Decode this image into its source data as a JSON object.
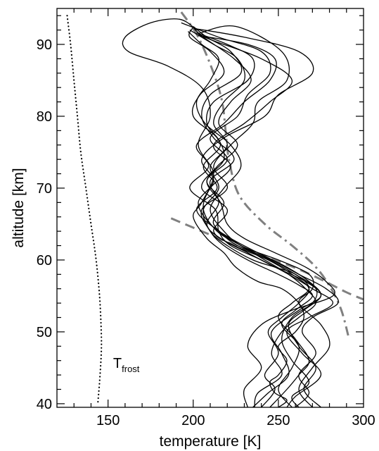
{
  "chart_data": {
    "type": "line",
    "title": "",
    "xlabel": "temperature [K]",
    "ylabel": "altitude [km]",
    "xlim": [
      120,
      300
    ],
    "ylim": [
      39.5,
      95
    ],
    "xticks": [
      150,
      200,
      250,
      300
    ],
    "yticks": [
      40,
      50,
      60,
      70,
      80,
      90
    ],
    "grid": false,
    "legend": "none",
    "colors": {
      "profiles": "#000000",
      "reference": "#808080",
      "frost": "#000000"
    },
    "annotation": {
      "text": "T",
      "subscript": "frost",
      "x": 153,
      "y": 45
    },
    "series": [
      {
        "style": "dotted",
        "color": "#000000",
        "x": [
          126,
          128,
          130,
          132,
          134,
          137,
          140,
          143,
          145,
          146,
          146,
          145,
          144
        ],
        "y": [
          94,
          90,
          85,
          80,
          75,
          70,
          65,
          60,
          55,
          50,
          47,
          43,
          40
        ]
      },
      {
        "style": "dashed",
        "color": "#808080",
        "x": [
          187,
          200,
          215,
          230,
          245,
          260,
          275,
          290,
          300
        ],
        "y": [
          65.8,
          64.5,
          63,
          61.5,
          60.2,
          58.9,
          57.3,
          55.5,
          54.5
        ]
      },
      {
        "style": "dashdot",
        "color": "#808080",
        "x": [
          193,
          203,
          212,
          217,
          219,
          221,
          227,
          242,
          258,
          272,
          281,
          287,
          291
        ],
        "y": [
          94.5,
          91,
          86,
          82,
          78,
          74,
          69,
          65,
          62,
          59,
          56,
          53,
          49.5
        ]
      },
      {
        "style": "solid",
        "color": "#000000",
        "x": [
          202,
          192,
          175,
          160,
          162,
          185,
          205,
          210,
          203,
          212,
          205,
          200,
          208,
          218,
          225,
          238,
          252,
          262,
          265,
          260,
          250,
          255,
          250,
          245,
          248,
          255,
          250
        ],
        "y": [
          92,
          93.5,
          93,
          91,
          89,
          87,
          84,
          80,
          76,
          72,
          68,
          66,
          63,
          61,
          59,
          57,
          56,
          54,
          52,
          50,
          48,
          46,
          44,
          43,
          41.5,
          40.5,
          39.5
        ]
      },
      {
        "style": "solid",
        "color": "#000000",
        "x": [
          198,
          212,
          226,
          230,
          218,
          212,
          220,
          210,
          215,
          206,
          210,
          220,
          235,
          248,
          260,
          268,
          258,
          250,
          260,
          268,
          262,
          255,
          245
        ],
        "y": [
          92,
          90,
          88,
          85,
          82,
          79,
          76,
          73,
          70,
          67,
          64,
          62,
          60,
          59,
          58,
          56,
          54,
          52,
          49,
          46,
          44,
          42,
          39.5
        ]
      },
      {
        "style": "solid",
        "color": "#000000",
        "x": [
          193,
          215,
          240,
          245,
          232,
          226,
          210,
          220,
          208,
          218,
          212,
          228,
          250,
          268,
          270,
          262,
          275,
          280,
          270,
          262,
          270
        ],
        "y": [
          93,
          91,
          89,
          86,
          83,
          80,
          77,
          74,
          71,
          68,
          65,
          62,
          60,
          58,
          56,
          54,
          51,
          48,
          45,
          42,
          39.5
        ]
      },
      {
        "style": "solid",
        "color": "#000000",
        "x": [
          203,
          225,
          252,
          255,
          238,
          235,
          222,
          212,
          220,
          205,
          210,
          218,
          232,
          250,
          262,
          270,
          260,
          252,
          262,
          258,
          250,
          258
        ],
        "y": [
          91.5,
          92.5,
          89,
          85,
          82,
          79,
          76,
          73,
          70,
          67,
          64,
          62,
          60,
          58,
          56.5,
          55,
          53,
          51,
          48,
          45,
          42,
          39.5
        ]
      },
      {
        "style": "solid",
        "color": "#000000",
        "x": [
          200,
          208,
          222,
          228,
          210,
          205,
          212,
          224,
          210,
          215,
          208,
          216,
          232,
          248,
          266,
          275,
          262,
          246,
          252,
          256,
          244,
          235
        ],
        "y": [
          92.5,
          91,
          89,
          86,
          83,
          80,
          77,
          74,
          71,
          68,
          65,
          63,
          61,
          59,
          57,
          55,
          53,
          50,
          47,
          44,
          41.5,
          39.5
        ]
      },
      {
        "style": "solid",
        "color": "#000000",
        "x": [
          197,
          205,
          215,
          210,
          202,
          207,
          222,
          228,
          218,
          210,
          218,
          228,
          245,
          260,
          272,
          270,
          258,
          252,
          258,
          268,
          258,
          262
        ],
        "y": [
          91.8,
          90,
          88,
          85,
          82,
          79,
          76,
          73,
          70,
          67,
          64,
          62,
          60,
          58,
          56,
          54,
          52,
          49,
          46,
          43,
          41,
          39.5
        ]
      },
      {
        "style": "solid",
        "color": "#000000",
        "x": [
          201,
          230,
          262,
          270,
          250,
          242,
          218,
          205,
          212,
          203,
          210,
          222,
          238,
          255,
          268,
          275,
          265,
          256,
          262,
          272,
          265,
          275
        ],
        "y": [
          92.2,
          91,
          89,
          86,
          83,
          80,
          77,
          74,
          71,
          68,
          65,
          63,
          61,
          59,
          57,
          55,
          53,
          51,
          48,
          45,
          42,
          39.5
        ]
      },
      {
        "style": "solid",
        "color": "#000000",
        "x": [
          204,
          232,
          248,
          245,
          230,
          218,
          202,
          209,
          198,
          213,
          215,
          222,
          240,
          256,
          270,
          282,
          268,
          255,
          264,
          275,
          260,
          255
        ],
        "y": [
          91.2,
          90,
          88,
          85,
          82,
          79,
          76,
          73,
          70,
          67,
          64,
          62,
          60,
          58,
          56,
          54,
          52,
          50,
          47,
          44,
          41,
          39.5
        ]
      },
      {
        "style": "solid",
        "color": "#000000",
        "x": [
          199,
          206,
          224,
          234,
          222,
          215,
          226,
          214,
          205,
          220,
          212,
          224,
          244,
          258,
          268,
          262,
          252,
          244,
          250,
          242,
          248,
          240
        ],
        "y": [
          92.6,
          91,
          88,
          85,
          82,
          79,
          76,
          73,
          70,
          67,
          64,
          62,
          60,
          58,
          56,
          54,
          52,
          50,
          47,
          44,
          42,
          39.5
        ]
      },
      {
        "style": "solid",
        "color": "#000000",
        "x": [
          202,
          220,
          235,
          232,
          212,
          208,
          216,
          206,
          214,
          202,
          215,
          226,
          246,
          262,
          278,
          285,
          270,
          264,
          272,
          262,
          268,
          260
        ],
        "y": [
          91.6,
          90,
          88,
          85,
          82,
          79,
          76,
          73,
          70,
          67,
          64,
          62,
          60,
          58,
          56,
          54,
          52,
          50,
          47,
          44,
          41.5,
          39.5
        ]
      },
      {
        "style": "solid",
        "color": "#000000",
        "x": [
          200,
          198,
          210,
          218,
          204,
          200,
          214,
          218,
          208,
          216,
          220,
          230,
          248,
          266,
          278,
          282,
          258,
          240,
          232,
          240,
          230,
          232
        ],
        "y": [
          92.4,
          91,
          89,
          86,
          83,
          80,
          77,
          74,
          71,
          68,
          65,
          63,
          61,
          59,
          57,
          55,
          53,
          51,
          48,
          45,
          42,
          39.5
        ]
      },
      {
        "style": "solid",
        "color": "#000000",
        "x": [
          203,
          212,
          240,
          258,
          245,
          230,
          212,
          222,
          210,
          206,
          214,
          228,
          242,
          256,
          266,
          272,
          262,
          252,
          246,
          252,
          238,
          236
        ],
        "y": [
          91.4,
          90.5,
          88,
          85,
          82,
          79,
          76,
          73,
          70,
          67,
          64,
          62,
          60,
          58,
          56,
          54,
          52,
          50,
          47,
          44,
          41.5,
          39.5
        ]
      }
    ]
  }
}
